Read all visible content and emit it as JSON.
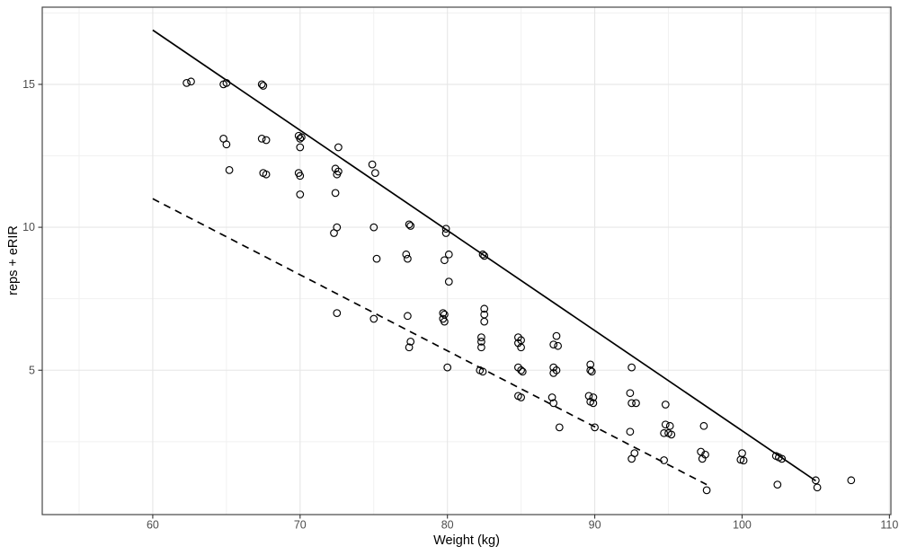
{
  "figure": {
    "background": "#ffffff"
  },
  "chart_data": {
    "type": "scatter",
    "title": "",
    "xlabel": "Weight (kg)",
    "ylabel": "reps + eRIR",
    "x_ticks": [
      60,
      70,
      80,
      90,
      100,
      110
    ],
    "x_minor_ticks": [
      55,
      65,
      75,
      85,
      95,
      105
    ],
    "y_ticks": [
      5,
      10,
      15
    ],
    "y_minor_ticks": [
      2.5,
      7.5,
      12.5,
      17.5
    ],
    "xlim": [
      52.5,
      110.1
    ],
    "ylim": [
      -0.05,
      17.7
    ],
    "grid": "major+minor",
    "legend_position": "none",
    "point_style": {
      "shape": "open-circle",
      "radius": 3.8,
      "stroke_width": 1.15
    },
    "colors": {
      "point": "#000000",
      "line": "#000000",
      "grid_major": "#e6e6e6",
      "grid_minor": "#f1f1f1",
      "panel_border": "#474747",
      "tick_mark": "#333333",
      "tick_label": "#4d4d4d",
      "axis_title": "#000000",
      "background": "#ffffff"
    },
    "lines": [
      {
        "name": "upper-bound-solid",
        "style": "solid",
        "x1": 60,
        "y1": 16.9,
        "x2": 105,
        "y2": 1.13,
        "width": 1.7
      },
      {
        "name": "lower-bound-dashed",
        "style": "dashed",
        "dash": "8 6",
        "x1": 60,
        "y1": 11.0,
        "x2": 97.6,
        "y2": 1.0,
        "width": 1.7
      }
    ],
    "points": [
      [
        62.3,
        15.05
      ],
      [
        62.6,
        15.1
      ],
      [
        64.8,
        15.0
      ],
      [
        65.0,
        15.05
      ],
      [
        67.4,
        15.0
      ],
      [
        67.5,
        14.95
      ],
      [
        64.8,
        13.1
      ],
      [
        65.0,
        12.9
      ],
      [
        67.4,
        13.1
      ],
      [
        67.7,
        13.05
      ],
      [
        69.9,
        13.2
      ],
      [
        70.1,
        13.15
      ],
      [
        70.0,
        13.1
      ],
      [
        70.0,
        12.8
      ],
      [
        72.6,
        12.8
      ],
      [
        65.2,
        12.0
      ],
      [
        67.5,
        11.9
      ],
      [
        67.7,
        11.85
      ],
      [
        69.9,
        11.9
      ],
      [
        70.0,
        11.8
      ],
      [
        72.4,
        12.05
      ],
      [
        72.6,
        11.95
      ],
      [
        72.5,
        11.85
      ],
      [
        74.9,
        12.2
      ],
      [
        75.1,
        11.9
      ],
      [
        70.0,
        11.15
      ],
      [
        72.4,
        11.2
      ],
      [
        72.3,
        9.8
      ],
      [
        72.5,
        10.0
      ],
      [
        75.0,
        10.0
      ],
      [
        77.4,
        10.1
      ],
      [
        77.5,
        10.05
      ],
      [
        79.9,
        9.95
      ],
      [
        79.9,
        9.8
      ],
      [
        75.2,
        8.9
      ],
      [
        77.2,
        9.05
      ],
      [
        77.3,
        8.9
      ],
      [
        80.1,
        9.05
      ],
      [
        79.8,
        8.85
      ],
      [
        82.4,
        9.05
      ],
      [
        82.5,
        9.0
      ],
      [
        80.1,
        8.1
      ],
      [
        72.5,
        7.0
      ],
      [
        75.0,
        6.8
      ],
      [
        77.3,
        6.9
      ],
      [
        79.7,
        7.0
      ],
      [
        79.8,
        6.95
      ],
      [
        79.7,
        6.8
      ],
      [
        79.8,
        6.7
      ],
      [
        82.5,
        7.15
      ],
      [
        82.5,
        6.95
      ],
      [
        82.5,
        6.7
      ],
      [
        77.5,
        6.0
      ],
      [
        77.4,
        5.8
      ],
      [
        82.3,
        6.15
      ],
      [
        82.3,
        6.0
      ],
      [
        82.3,
        5.8
      ],
      [
        84.8,
        6.15
      ],
      [
        85.0,
        6.05
      ],
      [
        84.8,
        5.95
      ],
      [
        85.0,
        5.8
      ],
      [
        87.4,
        6.2
      ],
      [
        87.2,
        5.9
      ],
      [
        87.5,
        5.85
      ],
      [
        80.0,
        5.1
      ],
      [
        82.2,
        5.0
      ],
      [
        82.4,
        4.95
      ],
      [
        84.8,
        5.1
      ],
      [
        85.0,
        5.0
      ],
      [
        85.1,
        4.95
      ],
      [
        87.2,
        5.1
      ],
      [
        87.4,
        5.0
      ],
      [
        87.2,
        4.9
      ],
      [
        89.7,
        5.2
      ],
      [
        89.7,
        5.0
      ],
      [
        89.8,
        4.95
      ],
      [
        92.5,
        5.1
      ],
      [
        84.8,
        4.1
      ],
      [
        85.0,
        4.05
      ],
      [
        87.1,
        4.05
      ],
      [
        87.2,
        3.85
      ],
      [
        89.6,
        4.1
      ],
      [
        89.9,
        4.05
      ],
      [
        89.7,
        3.9
      ],
      [
        89.9,
        3.85
      ],
      [
        92.4,
        4.2
      ],
      [
        92.5,
        3.85
      ],
      [
        92.8,
        3.85
      ],
      [
        94.8,
        3.8
      ],
      [
        87.6,
        3.0
      ],
      [
        90.0,
        3.0
      ],
      [
        92.4,
        2.85
      ],
      [
        94.8,
        3.1
      ],
      [
        95.1,
        3.05
      ],
      [
        94.7,
        2.8
      ],
      [
        95.0,
        2.8
      ],
      [
        95.2,
        2.75
      ],
      [
        97.4,
        3.05
      ],
      [
        97.2,
        2.15
      ],
      [
        97.5,
        2.05
      ],
      [
        97.3,
        1.9
      ],
      [
        100.0,
        2.1
      ],
      [
        99.9,
        1.87
      ],
      [
        100.1,
        1.84
      ],
      [
        102.3,
        2.0
      ],
      [
        102.5,
        1.95
      ],
      [
        102.7,
        1.9
      ],
      [
        92.7,
        2.1
      ],
      [
        92.5,
        1.9
      ],
      [
        94.7,
        1.85
      ],
      [
        97.6,
        0.8
      ],
      [
        102.4,
        1.0
      ],
      [
        105.0,
        1.15
      ],
      [
        105.1,
        0.9
      ],
      [
        107.4,
        1.15
      ]
    ]
  }
}
